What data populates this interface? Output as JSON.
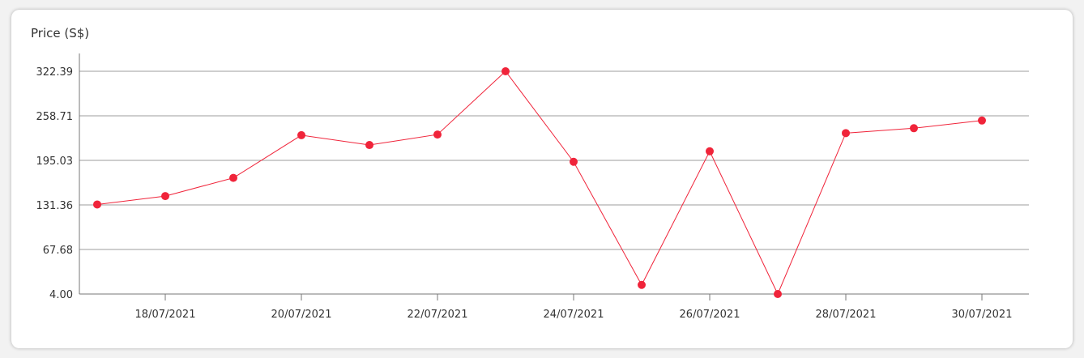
{
  "chart_data": {
    "type": "line",
    "ylabel": "Price (S$)",
    "xlabel": "",
    "title": "",
    "x": [
      "17/07/2021",
      "18/07/2021",
      "19/07/2021",
      "20/07/2021",
      "21/07/2021",
      "22/07/2021",
      "23/07/2021",
      "24/07/2021",
      "25/07/2021",
      "26/07/2021",
      "27/07/2021",
      "28/07/2021",
      "29/07/2021",
      "30/07/2021"
    ],
    "x_tick_labels": [
      "18/07/2021",
      "20/07/2021",
      "22/07/2021",
      "24/07/2021",
      "26/07/2021",
      "28/07/2021",
      "30/07/2021"
    ],
    "y_tick_labels": [
      "4.00",
      "67.68",
      "131.36",
      "195.03",
      "258.71",
      "322.39"
    ],
    "y_ticks": [
      4.0,
      67.68,
      131.36,
      195.03,
      258.71,
      322.39
    ],
    "ylim": [
      4.0,
      322.39
    ],
    "series": [
      {
        "values": [
          132,
          144,
          170,
          231,
          217,
          232,
          322.39,
          193,
          17,
          208,
          4,
          234,
          241,
          252
        ],
        "color": "#f0243a"
      }
    ],
    "grid": true,
    "legend": "none"
  }
}
